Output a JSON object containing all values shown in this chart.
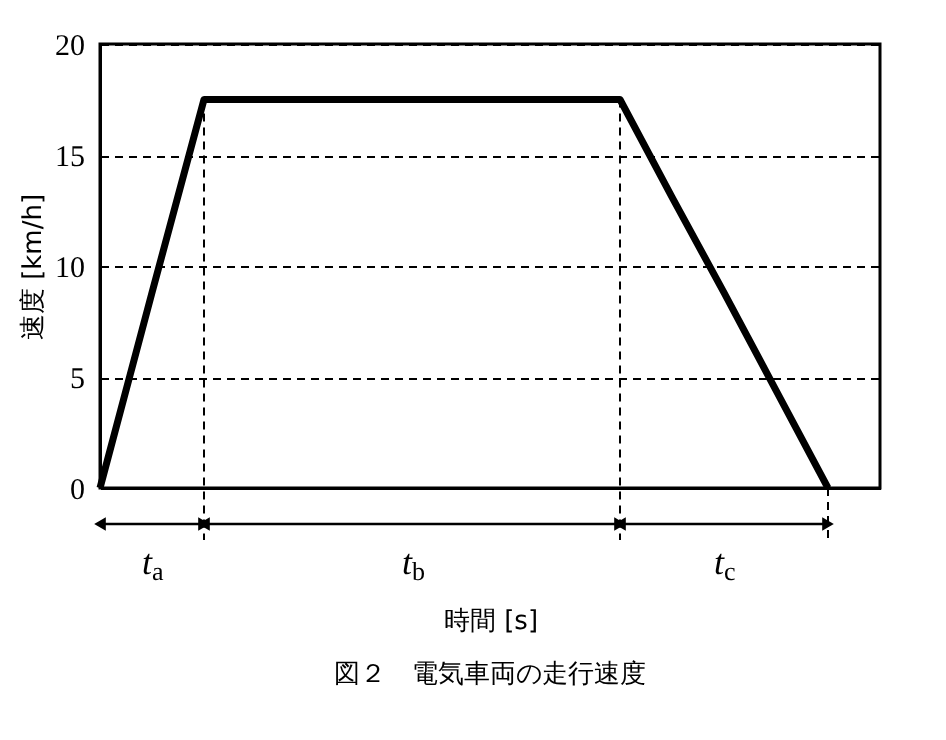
{
  "chart_data": {
    "type": "line",
    "title": "図２　電気車両の走行速度",
    "xlabel": "時間 [s]",
    "ylabel": "速度 [km/h]",
    "categories": [
      null,
      null,
      null,
      null,
      null,
      null,
      null,
      null,
      null,
      null,
      null,
      null,
      null,
      null,
      null,
      null
    ],
    "series": [
      {
        "color": "#000000",
        "values": [
          0,
          8.8,
          17.5,
          17.5,
          17.5,
          17.5,
          17.5,
          17.5,
          17.5,
          17.5,
          17.5,
          13.1,
          8.8,
          4.4,
          0,
          null
        ]
      }
    ],
    "ylim": [
      0,
      20
    ],
    "yticks": [
      0,
      5,
      10,
      15,
      20
    ],
    "grid": "y",
    "line_style": "solid",
    "annotations": [
      "t$_{a}$",
      "t$_{b}$",
      "t$_{c}$"
    ]
  }
}
